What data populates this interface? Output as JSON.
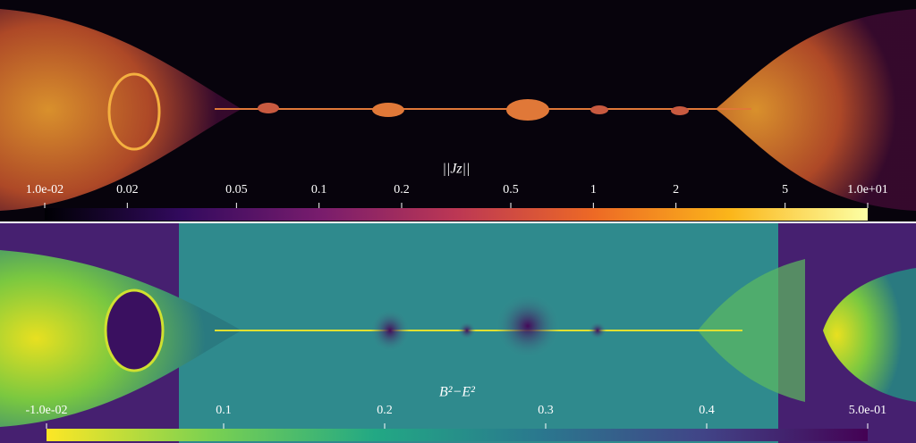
{
  "chart_data": [
    {
      "type": "colorbar",
      "title": "||Jz||",
      "log": true,
      "colormap": "inferno",
      "xlim": [
        0.01,
        10
      ],
      "xticks": [
        {
          "value": 0.01,
          "label": "1.0e-02"
        },
        0.02,
        0.05,
        0.1,
        0.2,
        0.5,
        1,
        2,
        5,
        {
          "value": 10,
          "label": "1.0e+01"
        }
      ]
    },
    {
      "type": "colorbar",
      "title": "B²−E²",
      "log": false,
      "colormap": "viridis_r",
      "xlim": [
        -0.01,
        0.5
      ],
      "xticks": [
        {
          "value": -0.01,
          "label": "-1.0e-02"
        },
        0.1,
        0.2,
        0.3,
        0.4,
        {
          "value": 0.5,
          "label": "5.0e-01"
        }
      ]
    }
  ]
}
